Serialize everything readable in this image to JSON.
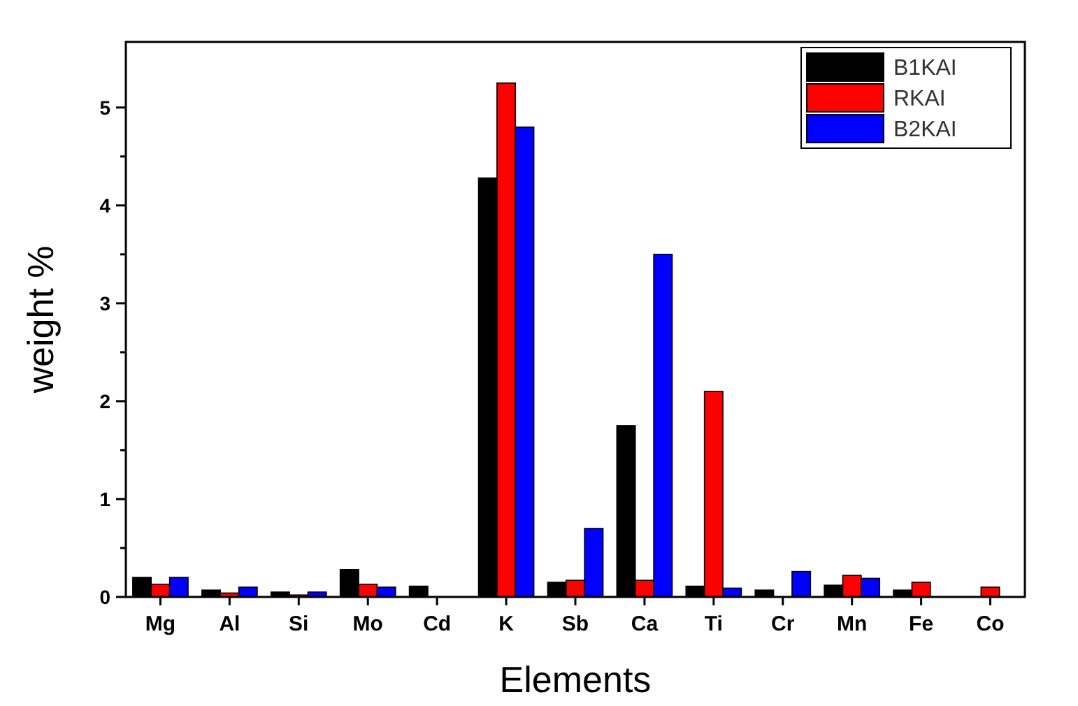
{
  "chart_data": {
    "type": "bar",
    "xlabel": "Elements",
    "ylabel": "weight %",
    "categories": [
      "Mg",
      "Al",
      "Si",
      "Mo",
      "Cd",
      "K",
      "Sb",
      "Ca",
      "Ti",
      "Cr",
      "Mn",
      "Fe",
      "Co"
    ],
    "series": [
      {
        "name": "B1KAI",
        "color": "#000000",
        "values": [
          0.2,
          0.07,
          0.05,
          0.28,
          0.11,
          4.28,
          0.15,
          1.75,
          0.11,
          0.07,
          0.12,
          0.07,
          0
        ]
      },
      {
        "name": "RKAI",
        "color": "#ff0000",
        "values": [
          0.13,
          0.04,
          0.02,
          0.13,
          0,
          5.25,
          0.17,
          0.17,
          2.1,
          0,
          0.22,
          0.15,
          0.1
        ]
      },
      {
        "name": "B2KAI",
        "color": "#0000ff",
        "values": [
          0.2,
          0.1,
          0.05,
          0.1,
          0,
          4.8,
          0.7,
          3.5,
          0.09,
          0.26,
          0.19,
          0,
          0
        ]
      }
    ],
    "ylim": [
      0,
      5.67
    ],
    "yticks": [
      0,
      {
        "value": 0.5,
        "label": null
      },
      1,
      {
        "value": 1.5,
        "label": null
      },
      2,
      {
        "value": 2.5,
        "label": null
      },
      3,
      {
        "value": 3.5,
        "label": null
      },
      4,
      {
        "value": 4.5,
        "label": null
      },
      5
    ],
    "grid": false,
    "legend": "top right"
  }
}
